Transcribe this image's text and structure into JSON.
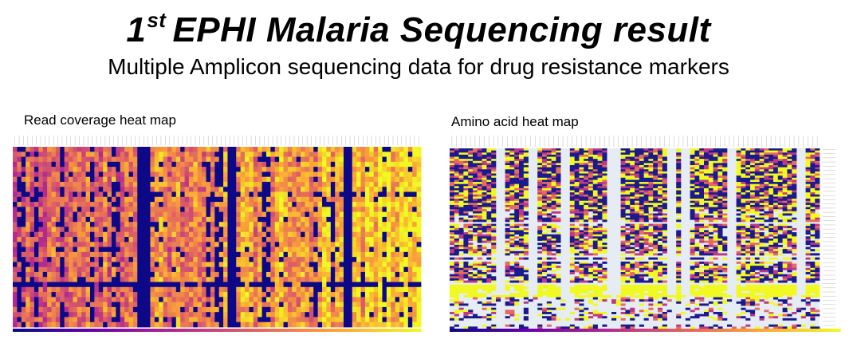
{
  "header": {
    "title_num": "1",
    "title_sup": "st",
    "title_rest": "EPHI Malaria Sequencing result",
    "subtitle": "Multiple Amplicon sequencing data for drug resistance markers"
  },
  "colors": {
    "colorscale": [
      "#0d0887",
      "#6a00a8",
      "#b12a90",
      "#e16462",
      "#fca636",
      "#f0f921"
    ],
    "missing": "#e6ecf3",
    "dark_navy": "#1a1a8c"
  },
  "chart_data": [
    {
      "type": "heatmap",
      "title": "Read coverage heat map",
      "rows": 36,
      "columns": 95,
      "colorscale": "plasma",
      "dark_columns": [
        29,
        30,
        31,
        50,
        51,
        77,
        78
      ],
      "blue_columns": [
        1,
        2,
        5,
        11,
        18,
        23,
        24,
        45,
        47,
        48,
        58,
        59,
        70,
        74,
        86
      ],
      "colorbar": "bottom"
    },
    {
      "type": "heatmap",
      "title": "Amino acid  heat map",
      "rows": 86,
      "columns": 80,
      "colorscale": "plasma",
      "missing_columns": [
        10,
        11,
        17,
        18,
        24,
        25,
        34,
        35,
        36,
        47,
        48,
        50,
        51,
        60,
        61,
        75,
        76
      ],
      "colorbar": "bottom"
    }
  ]
}
